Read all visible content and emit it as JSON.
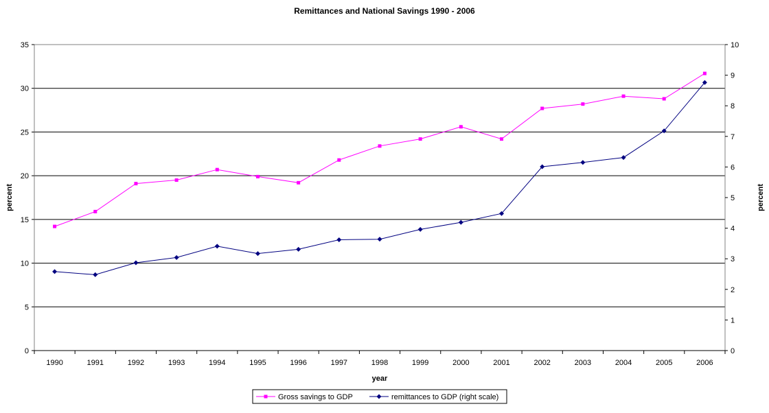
{
  "chart_data": {
    "type": "line",
    "title": "Remittances and National Savings 1990 - 2006",
    "xlabel": "year",
    "ylabel_left": "percent",
    "ylabel_right": "percent",
    "ylim_left": [
      0,
      35
    ],
    "ylim_right": [
      0,
      10
    ],
    "yticks_left": [
      "0",
      "5",
      "10",
      "15",
      "20",
      "25",
      "30",
      "35"
    ],
    "yticks_right": [
      "0",
      "1",
      "2",
      "3",
      "4",
      "5",
      "6",
      "7",
      "8",
      "9",
      "10"
    ],
    "categories": [
      "1990",
      "1991",
      "1992",
      "1993",
      "1994",
      "1995",
      "1996",
      "1997",
      "1998",
      "1999",
      "2000",
      "2001",
      "2002",
      "2003",
      "2004",
      "2005",
      "2006"
    ],
    "grid": "horizontal major gridlines (left axis)",
    "legend_position": "bottom",
    "series": [
      {
        "name": "Gross savings to GDP",
        "axis": "left",
        "color": "#FF00FF",
        "marker": "square",
        "values": [
          14.2,
          15.9,
          19.1,
          19.5,
          20.7,
          19.9,
          19.2,
          21.8,
          23.4,
          24.2,
          25.6,
          24.2,
          27.7,
          28.2,
          29.1,
          28.8,
          31.7
        ]
      },
      {
        "name": "remittances to GDP (right scale)",
        "axis": "right",
        "color": "#000080",
        "marker": "diamond",
        "values": [
          2.58,
          2.48,
          2.87,
          3.04,
          3.41,
          3.17,
          3.31,
          3.62,
          3.64,
          3.96,
          4.19,
          4.48,
          6.01,
          6.15,
          6.31,
          7.18,
          8.76
        ]
      }
    ]
  }
}
